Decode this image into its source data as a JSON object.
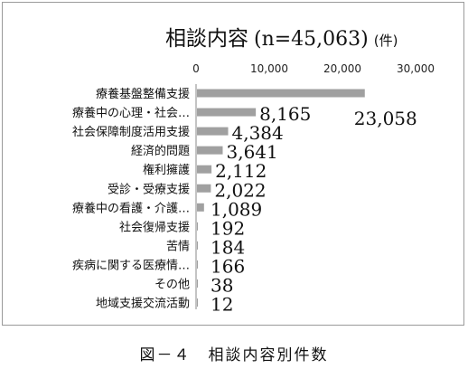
{
  "chart_data": {
    "type": "bar",
    "orientation": "horizontal",
    "title": "相談内容",
    "title_suffix": "(n=45,063)",
    "title_unit": "(件)",
    "categories": [
      "療養基盤整備支援",
      "療養中の心理・社会…",
      "社会保障制度活用支援",
      "経済的問題",
      "権利擁護",
      "受診・受療支援",
      "療養中の看護・介護…",
      "社会復帰支援",
      "苦情",
      "疾病に関する医療情…",
      "その他",
      "地域支援交流活動"
    ],
    "values": [
      23058,
      8165,
      4384,
      3641,
      2112,
      2022,
      1089,
      192,
      184,
      166,
      38,
      12
    ],
    "data_labels": [
      "23,058",
      "8,165",
      "4,384",
      "3,641",
      "2,112",
      "2,022",
      "1,089",
      "192",
      "184",
      "166",
      "38",
      "12"
    ],
    "xlim": [
      0,
      30000
    ],
    "xticks": [
      "0",
      "10,000",
      "20,000",
      "30,000"
    ],
    "bar_color": "#a0a0a0",
    "grid": false,
    "legend": "none"
  },
  "caption": "図－４　相談内容別件数"
}
